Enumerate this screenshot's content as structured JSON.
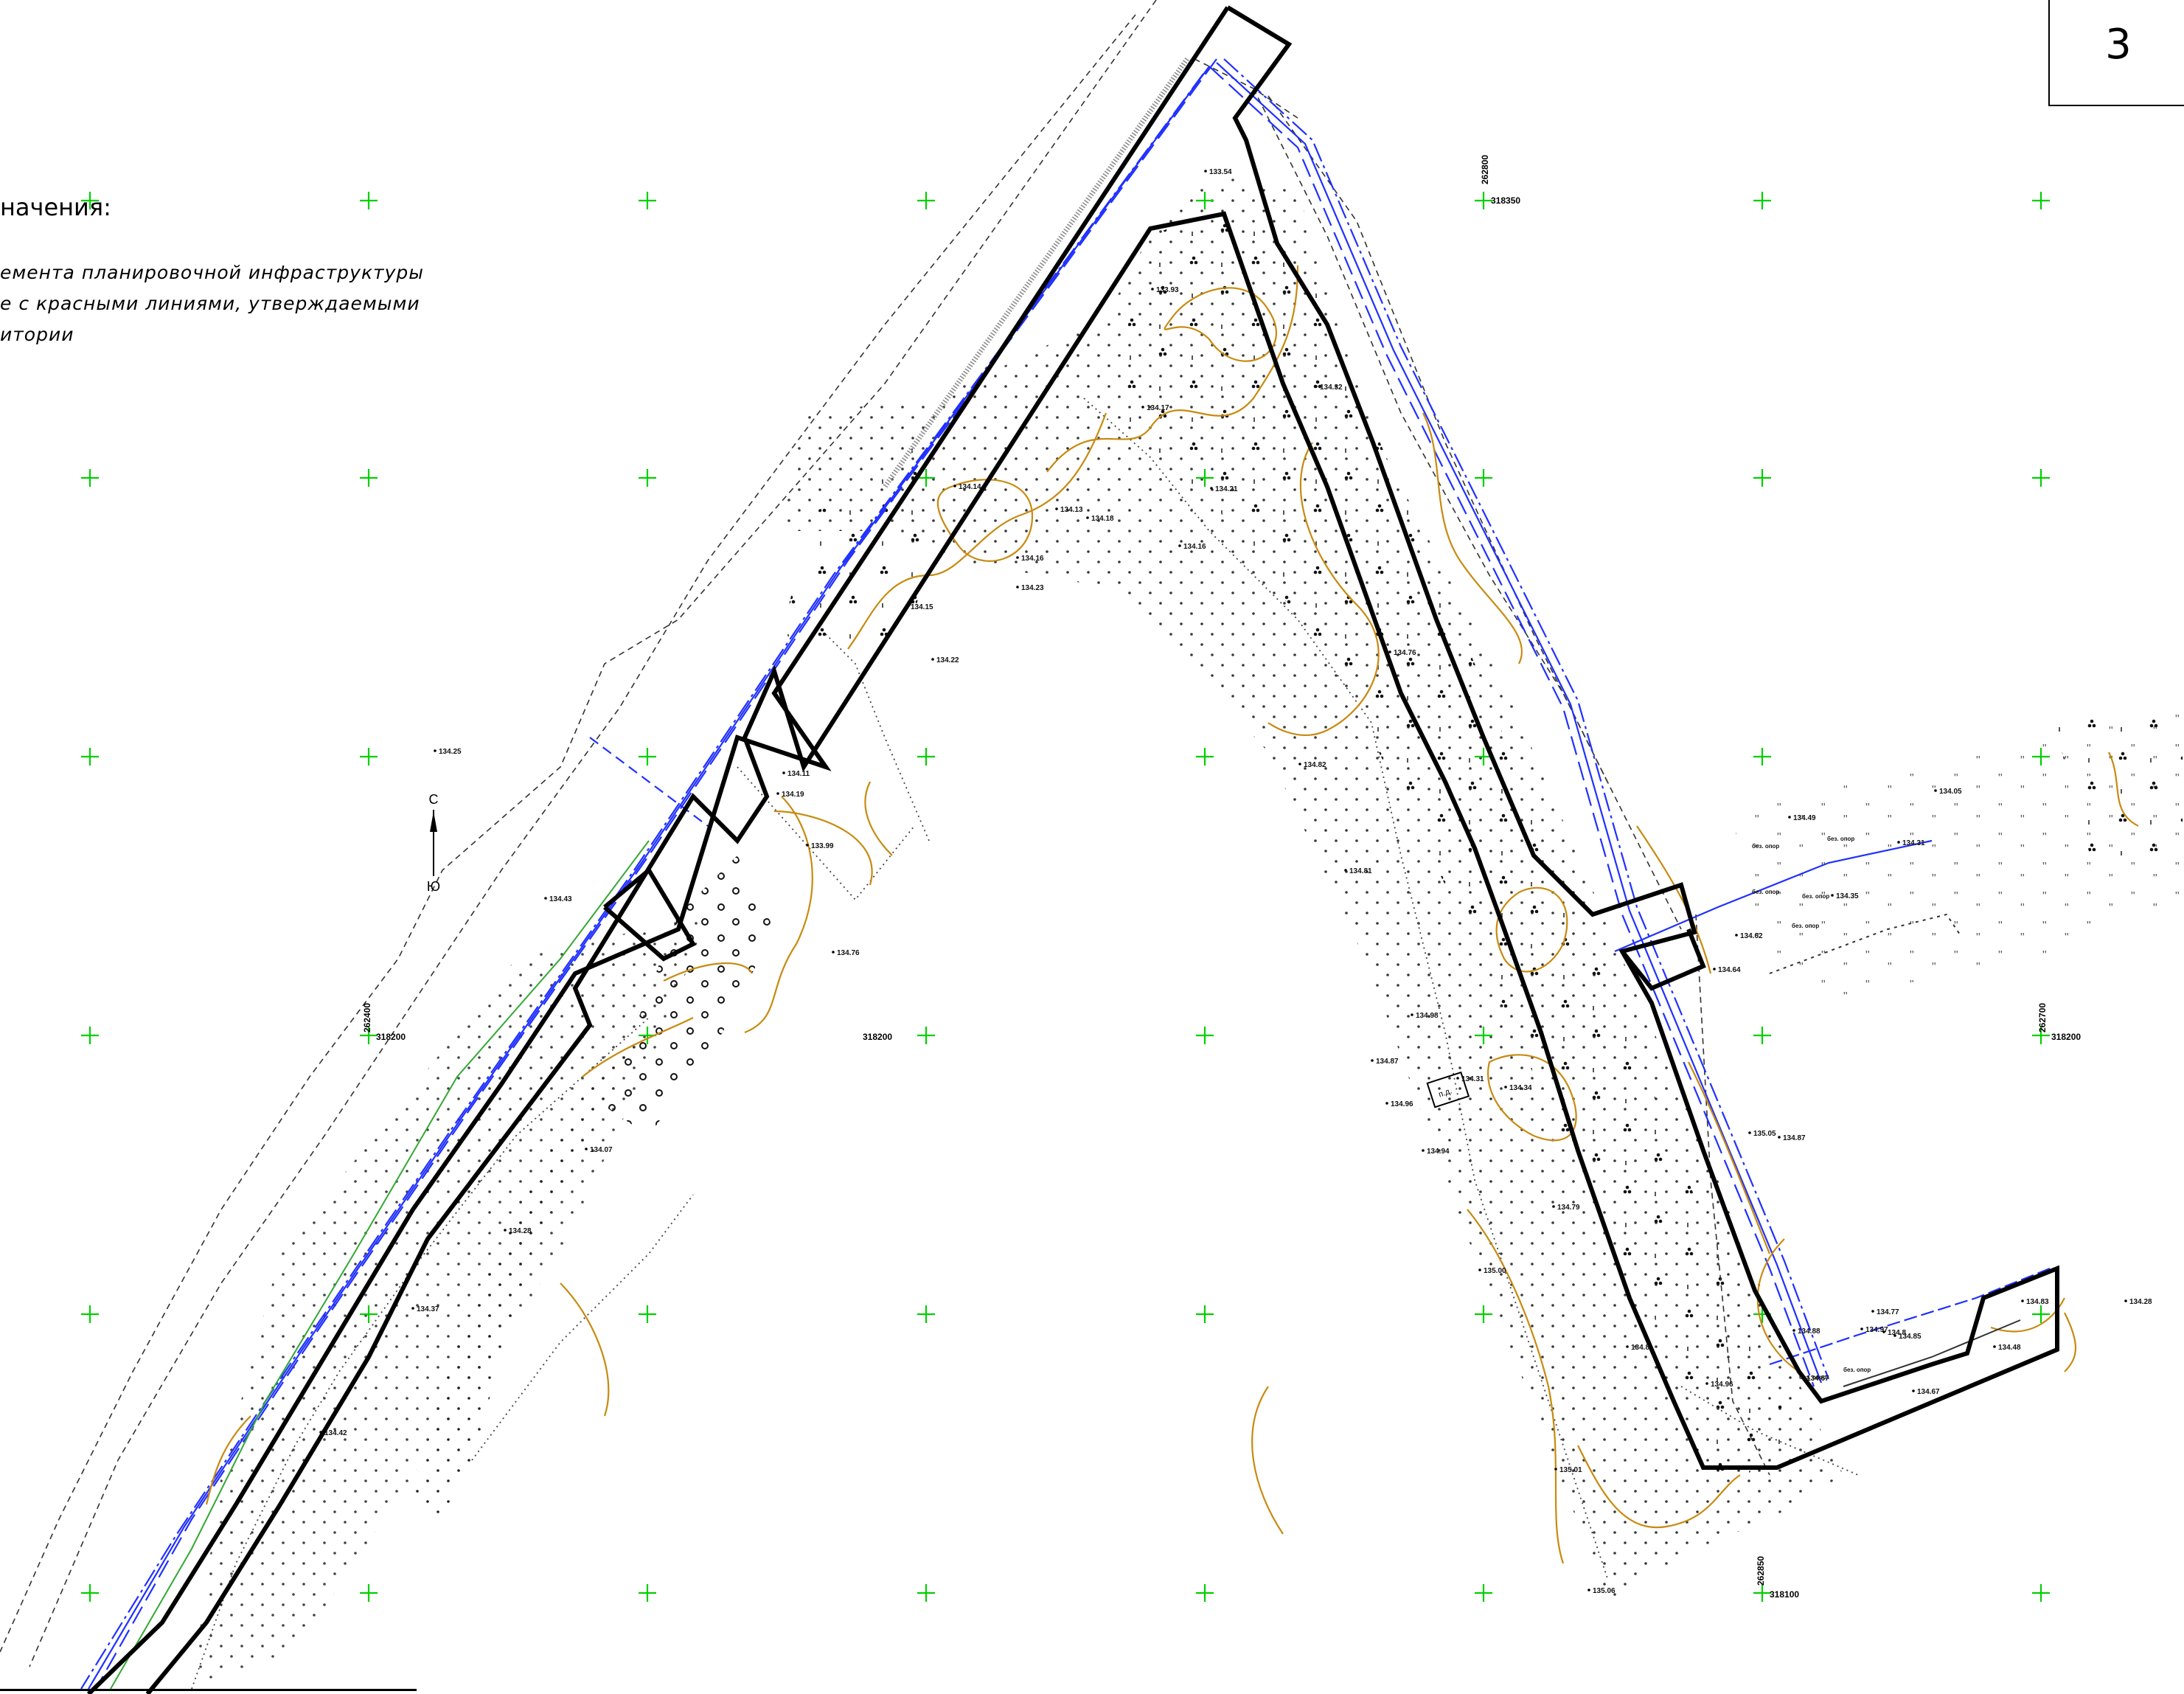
{
  "sheet": {
    "number": "3"
  },
  "legend": {
    "title": "начения:",
    "lines": [
      "емента планировочной инфраструктуры",
      "е с красными линиями, утверждаемыми",
      "итории"
    ]
  },
  "north_arrow": {
    "north": "С",
    "south": "Ю"
  },
  "grid_labels": [
    {
      "text": "318350",
      "side": "318350"
    },
    {
      "text": "318200"
    },
    {
      "text": "318200"
    },
    {
      "text": "318200"
    },
    {
      "text": "318100"
    },
    {
      "text": "262800"
    },
    {
      "text": "262400"
    },
    {
      "text": "262700"
    },
    {
      "text": "262850"
    }
  ],
  "elevations": [
    "134.43",
    "134.07",
    "134.28",
    "134.37",
    "134.42",
    "134.76",
    "134.21",
    "134.16",
    "134.22",
    "134.23",
    "134.13",
    "134.18",
    "134.16",
    "133.54",
    "133.93",
    "134.17",
    "134.32",
    "134.76",
    "134.82",
    "134.81",
    "134.98",
    "134.94",
    "134.96",
    "134.87",
    "134.31",
    "134.34",
    "134.79",
    "134.8",
    "134.96",
    "135.01",
    "135.00",
    "135.05",
    "134.87",
    "134.88",
    "134.97",
    "134.67",
    "135.06",
    "134.8",
    "134.64",
    "134.83",
    "134.31",
    "134.05",
    "134.35",
    "134.49",
    "134.28",
    "134.48",
    "134.62",
    "134.67",
    "134.77",
    "134.85",
    "134.25",
    "134.15",
    "134.11",
    "133.99",
    "134.19",
    "134.14"
  ],
  "labels": {
    "pd": "п.д.",
    "bez_opor": "без. опор"
  }
}
